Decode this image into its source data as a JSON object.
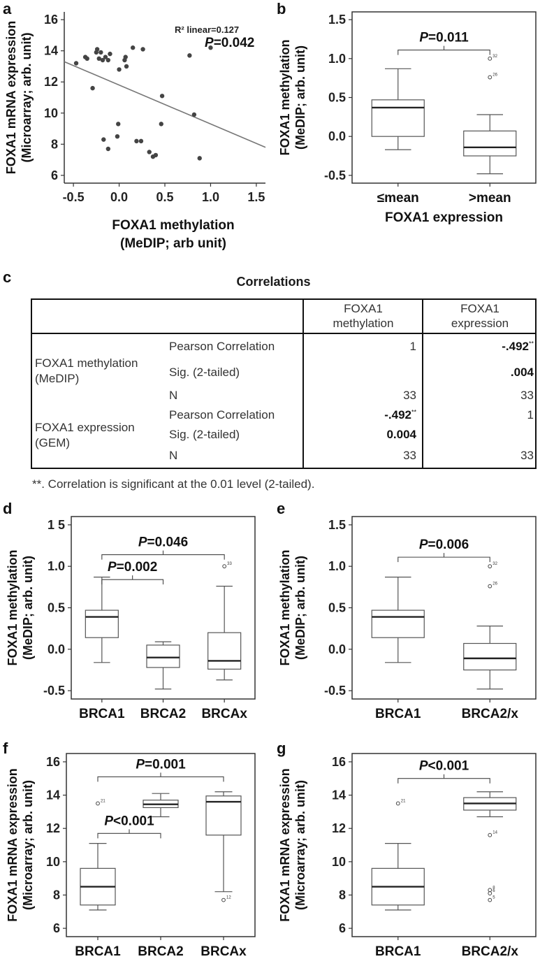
{
  "panel_labels": [
    "a",
    "b",
    "c",
    "d",
    "e",
    "f",
    "g"
  ],
  "chart_data": [
    {
      "id": "a",
      "type": "scatter",
      "xlabel": [
        "FOXA1 methylation",
        "(MeDIP; arb unit)"
      ],
      "ylabel": [
        "FOXA1 mRNA expression",
        "(Microarray; arb. unit)"
      ],
      "xlim": [
        -0.6,
        1.6
      ],
      "ylim": [
        5.5,
        16.5
      ],
      "xticks": [
        -0.5,
        0.0,
        0.5,
        1.0,
        1.5
      ],
      "xtick_labels": [
        "-0.5",
        "0.0",
        "0.5",
        "1.0",
        "1.5"
      ],
      "yticks": [
        6,
        8,
        10,
        12,
        14,
        16
      ],
      "ytick_labels": [
        "6",
        "8",
        "10",
        "12",
        "14",
        "16"
      ],
      "annotation_r2": "R² linear=0.127",
      "annotation_p": "P=0.042",
      "fit_line": {
        "x": [
          -0.6,
          1.6
        ],
        "y": [
          13.3,
          7.8
        ]
      },
      "points": [
        {
          "x": -0.47,
          "y": 13.2
        },
        {
          "x": -0.37,
          "y": 13.6
        },
        {
          "x": -0.35,
          "y": 13.5
        },
        {
          "x": -0.29,
          "y": 11.6
        },
        {
          "x": -0.25,
          "y": 13.9
        },
        {
          "x": -0.24,
          "y": 14.1
        },
        {
          "x": -0.22,
          "y": 13.5
        },
        {
          "x": -0.2,
          "y": 13.9
        },
        {
          "x": -0.18,
          "y": 13.4
        },
        {
          "x": -0.15,
          "y": 13.6
        },
        {
          "x": -0.12,
          "y": 13.4
        },
        {
          "x": -0.1,
          "y": 13.8
        },
        {
          "x": -0.17,
          "y": 8.3
        },
        {
          "x": -0.12,
          "y": 7.7
        },
        {
          "x": -0.02,
          "y": 8.5
        },
        {
          "x": -0.01,
          "y": 9.3
        },
        {
          "x": 0.0,
          "y": 12.8
        },
        {
          "x": 0.06,
          "y": 13.4
        },
        {
          "x": 0.07,
          "y": 13.6
        },
        {
          "x": 0.08,
          "y": 13.0
        },
        {
          "x": 0.15,
          "y": 14.2
        },
        {
          "x": 0.19,
          "y": 8.2
        },
        {
          "x": 0.24,
          "y": 8.2
        },
        {
          "x": 0.26,
          "y": 14.1
        },
        {
          "x": 0.33,
          "y": 7.5
        },
        {
          "x": 0.37,
          "y": 7.2
        },
        {
          "x": 0.4,
          "y": 7.3
        },
        {
          "x": 0.46,
          "y": 9.3
        },
        {
          "x": 0.47,
          "y": 11.1
        },
        {
          "x": 0.77,
          "y": 13.7
        },
        {
          "x": 0.82,
          "y": 9.9
        },
        {
          "x": 0.88,
          "y": 7.1
        },
        {
          "x": 1.0,
          "y": 14.2
        }
      ]
    },
    {
      "id": "b",
      "type": "box",
      "ylabel": [
        "FOXA1 methylation",
        "(MeDIP; arb. unit)"
      ],
      "xlabel": "FOXA1 expression",
      "ylim": [
        -0.6,
        1.6
      ],
      "yticks": [
        -0.5,
        0.0,
        0.5,
        1.0,
        1.5
      ],
      "ytick_labels": [
        "-0.5",
        "0.0",
        "0.5",
        "1.0",
        "1.5"
      ],
      "categories": [
        "≤mean",
        ">mean"
      ],
      "boxes": [
        {
          "min": -0.17,
          "q1": 0.0,
          "median": 0.37,
          "q3": 0.47,
          "max": 0.87,
          "outliers": []
        },
        {
          "min": -0.48,
          "q1": -0.25,
          "median": -0.14,
          "q3": 0.07,
          "max": 0.28,
          "outliers": [
            {
              "value": 1.0,
              "label": "32"
            },
            {
              "value": 0.76,
              "label": "26"
            }
          ]
        }
      ],
      "brackets": [
        {
          "from": 0,
          "to": 1,
          "y": 1.11,
          "text": "P=0.011"
        }
      ]
    },
    {
      "id": "d",
      "type": "box",
      "ylabel": [
        "FOXA1 methylation",
        "(MeDIP; arb. unit)"
      ],
      "ylim": [
        -0.6,
        1.6
      ],
      "yticks": [
        -0.5,
        0.0,
        0.5,
        1.0,
        1.5
      ],
      "ytick_labels": [
        "-0.5",
        "0.0",
        "0.5",
        "1.0",
        "1 5"
      ],
      "categories": [
        "BRCA1",
        "BRCA2",
        "BRCAx"
      ],
      "boxes": [
        {
          "min": -0.16,
          "q1": 0.14,
          "median": 0.39,
          "q3": 0.47,
          "max": 0.87,
          "outliers": []
        },
        {
          "min": -0.48,
          "q1": -0.22,
          "median": -0.1,
          "q3": 0.05,
          "max": 0.09,
          "outliers": []
        },
        {
          "min": -0.37,
          "q1": -0.24,
          "median": -0.14,
          "q3": 0.2,
          "max": 0.76,
          "outliers": [
            {
              "value": 1.0,
              "label": "33"
            }
          ]
        }
      ],
      "brackets": [
        {
          "from": 0,
          "to": 2,
          "y": 1.14,
          "text": "P=0.046"
        },
        {
          "from": 0,
          "to": 1,
          "y": 0.84,
          "text": "P=0.002"
        }
      ]
    },
    {
      "id": "e",
      "type": "box",
      "ylabel": [
        "FOXA1 methylation",
        "(MeDIP; arb. unit)"
      ],
      "ylim": [
        -0.6,
        1.6
      ],
      "yticks": [
        -0.5,
        0.0,
        0.5,
        1.0,
        1.5
      ],
      "ytick_labels": [
        "-0.5",
        "0.0",
        "0.5",
        "1.0",
        "1.5"
      ],
      "categories": [
        "BRCA1",
        "BRCA2/x"
      ],
      "boxes": [
        {
          "min": -0.16,
          "q1": 0.14,
          "median": 0.39,
          "q3": 0.47,
          "max": 0.87,
          "outliers": []
        },
        {
          "min": -0.48,
          "q1": -0.25,
          "median": -0.11,
          "q3": 0.07,
          "max": 0.28,
          "outliers": [
            {
              "value": 1.0,
              "label": "32"
            },
            {
              "value": 0.76,
              "label": "26"
            }
          ]
        }
      ],
      "brackets": [
        {
          "from": 0,
          "to": 1,
          "y": 1.11,
          "text": "P=0.006"
        }
      ]
    },
    {
      "id": "f",
      "type": "box",
      "ylabel": [
        "FOXA1 mRNA expression",
        "(Microarray; arb. unit)"
      ],
      "ylim": [
        5.5,
        16.5
      ],
      "yticks": [
        6,
        8,
        10,
        12,
        14,
        16
      ],
      "ytick_labels": [
        "6",
        "8",
        "10",
        "12",
        "14",
        "16"
      ],
      "categories": [
        "BRCA1",
        "BRCA2",
        "BRCAx"
      ],
      "boxes": [
        {
          "min": 7.1,
          "q1": 7.4,
          "median": 8.5,
          "q3": 9.6,
          "max": 11.1,
          "outliers": [
            {
              "value": 13.5,
              "label": "21"
            }
          ]
        },
        {
          "min": 12.7,
          "q1": 13.25,
          "median": 13.45,
          "q3": 13.7,
          "max": 14.1,
          "outliers": []
        },
        {
          "min": 8.2,
          "q1": 11.6,
          "median": 13.6,
          "q3": 13.95,
          "max": 14.2,
          "outliers": [
            {
              "value": 7.7,
              "label": "12"
            }
          ]
        }
      ],
      "brackets": [
        {
          "from": 0,
          "to": 2,
          "y": 15.1,
          "text": "P=0.001"
        },
        {
          "from": 0,
          "to": 1,
          "y": 11.7,
          "text": "P<0.001"
        }
      ]
    },
    {
      "id": "g",
      "type": "box",
      "ylabel": [
        "FOXA1 mRNA expression",
        "(Microarray; arb. unit)"
      ],
      "ylim": [
        5.5,
        16.5
      ],
      "yticks": [
        6,
        8,
        10,
        12,
        14,
        16
      ],
      "ytick_labels": [
        "6",
        "8",
        "10",
        "12",
        "14",
        "16"
      ],
      "categories": [
        "BRCA1",
        "BRCA2/x"
      ],
      "boxes": [
        {
          "min": 7.1,
          "q1": 7.4,
          "median": 8.5,
          "q3": 9.6,
          "max": 11.1,
          "outliers": [
            {
              "value": 13.5,
              "label": "21"
            }
          ]
        },
        {
          "min": 12.7,
          "q1": 13.1,
          "median": 13.5,
          "q3": 13.85,
          "max": 14.2,
          "outliers": [
            {
              "value": 11.6,
              "label": "14"
            },
            {
              "value": 8.3,
              "label": "8"
            },
            {
              "value": 8.1,
              "label": "6"
            },
            {
              "value": 7.7,
              "label": "5"
            }
          ]
        }
      ],
      "brackets": [
        {
          "from": 0,
          "to": 1,
          "y": 15.0,
          "text": "P<0.001"
        }
      ]
    }
  ],
  "table": {
    "title": "Correlations",
    "col_headers": [
      [
        "FOXA1",
        "methylation"
      ],
      [
        "FOXA1",
        "expression"
      ]
    ],
    "groups": [
      {
        "label": [
          "FOXA1 methylation",
          " (MeDIP)"
        ],
        "rows": [
          {
            "stat": "Pearson Correlation",
            "v1": "1",
            "v2": "-.492",
            "v2_sup": "**"
          },
          {
            "stat": "Sig. (2-tailed)",
            "v1": "",
            "v2": ".004"
          },
          {
            "stat": "N",
            "v1": "33",
            "v2": "33"
          }
        ]
      },
      {
        "label": [
          "FOXA1 expression",
          "(GEM)"
        ],
        "rows": [
          {
            "stat": "Pearson Correlation",
            "v1": "-.492",
            "v1_sup": "**",
            "v2": "1"
          },
          {
            "stat": "Sig. (2-tailed)",
            "v1": "0.004",
            "v2": ""
          },
          {
            "stat": "N",
            "v1": "33",
            "v2": "33"
          }
        ]
      }
    ],
    "footnote": "**. Correlation is significant at the 0.01 level (2-tailed)."
  }
}
